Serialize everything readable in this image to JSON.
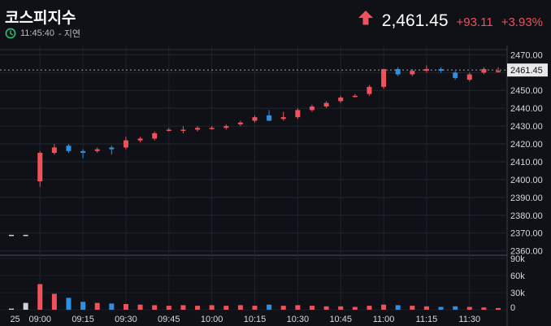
{
  "header": {
    "title": "코스피지수",
    "time": "11:45:40",
    "delay_label": "- 지연",
    "price": "2,461.45",
    "change": "+93.11",
    "change_pct": "+3.93%",
    "up_color": "#f0515c",
    "down_color": "#2f8fe0"
  },
  "chart_data": {
    "type": "candlestick",
    "price_axis": {
      "ticks": [
        "2470.00",
        "2460.00",
        "2450.00",
        "2440.00",
        "2430.00",
        "2420.00",
        "2410.00",
        "2400.00",
        "2390.00",
        "2380.00",
        "2370.00",
        "2360.00"
      ],
      "range": [
        2358,
        2472
      ],
      "last_price_label": "2461.45",
      "last_price": 2461.45
    },
    "volume_axis": {
      "ticks": [
        "90k",
        "60k",
        "30k",
        "0"
      ],
      "range": [
        0,
        90000
      ]
    },
    "time_labels": [
      "25",
      "09:00",
      "09:15",
      "09:30",
      "09:45",
      "10:00",
      "10:15",
      "10:30",
      "10:45",
      "11:00",
      "11:15",
      "11:30"
    ],
    "candles": [
      {
        "t": "08:50",
        "o": 2369,
        "h": 2369,
        "l": 2369,
        "c": 2369,
        "v": 2000
      },
      {
        "t": "08:55",
        "o": 2369,
        "h": 2369,
        "l": 2369,
        "c": 2369,
        "v": 12000
      },
      {
        "t": "09:00",
        "o": 2399,
        "h": 2416,
        "l": 2396,
        "c": 2415,
        "v": 45000
      },
      {
        "t": "09:05",
        "o": 2415,
        "h": 2420,
        "l": 2414,
        "c": 2418,
        "v": 28000
      },
      {
        "t": "09:10",
        "o": 2419,
        "h": 2420,
        "l": 2415,
        "c": 2416,
        "v": 21000
      },
      {
        "t": "09:15",
        "o": 2416,
        "h": 2417,
        "l": 2412,
        "c": 2415,
        "v": 14000
      },
      {
        "t": "09:20",
        "o": 2416,
        "h": 2418,
        "l": 2415,
        "c": 2417,
        "v": 12000
      },
      {
        "t": "09:25",
        "o": 2418,
        "h": 2419,
        "l": 2414,
        "c": 2417,
        "v": 11000
      },
      {
        "t": "09:30",
        "o": 2418,
        "h": 2424,
        "l": 2417,
        "c": 2422,
        "v": 10000
      },
      {
        "t": "09:35",
        "o": 2422,
        "h": 2424,
        "l": 2421,
        "c": 2423,
        "v": 9000
      },
      {
        "t": "09:40",
        "o": 2423,
        "h": 2427,
        "l": 2422,
        "c": 2426,
        "v": 8000
      },
      {
        "t": "09:45",
        "o": 2428,
        "h": 2429,
        "l": 2427,
        "c": 2428,
        "v": 7000
      },
      {
        "t": "09:50",
        "o": 2428,
        "h": 2430,
        "l": 2426,
        "c": 2428,
        "v": 8000
      },
      {
        "t": "09:55",
        "o": 2428,
        "h": 2430,
        "l": 2427,
        "c": 2429,
        "v": 7000
      },
      {
        "t": "10:00",
        "o": 2429,
        "h": 2430,
        "l": 2428,
        "c": 2429,
        "v": 8000
      },
      {
        "t": "10:05",
        "o": 2429,
        "h": 2431,
        "l": 2428,
        "c": 2430,
        "v": 7000
      },
      {
        "t": "10:10",
        "o": 2431,
        "h": 2433,
        "l": 2430,
        "c": 2432,
        "v": 8000
      },
      {
        "t": "10:15",
        "o": 2433,
        "h": 2436,
        "l": 2432,
        "c": 2435,
        "v": 7000
      },
      {
        "t": "10:20",
        "o": 2436,
        "h": 2439,
        "l": 2433,
        "c": 2433,
        "v": 9000
      },
      {
        "t": "10:25",
        "o": 2434,
        "h": 2438,
        "l": 2433,
        "c": 2435,
        "v": 7000
      },
      {
        "t": "10:30",
        "o": 2435,
        "h": 2440,
        "l": 2434,
        "c": 2439,
        "v": 8000
      },
      {
        "t": "10:35",
        "o": 2439,
        "h": 2442,
        "l": 2438,
        "c": 2441,
        "v": 7000
      },
      {
        "t": "10:40",
        "o": 2441,
        "h": 2444,
        "l": 2440,
        "c": 2443,
        "v": 6000
      },
      {
        "t": "10:45",
        "o": 2444,
        "h": 2447,
        "l": 2443,
        "c": 2446,
        "v": 6000
      },
      {
        "t": "10:50",
        "o": 2447,
        "h": 2448,
        "l": 2446,
        "c": 2447,
        "v": 5000
      },
      {
        "t": "10:55",
        "o": 2448,
        "h": 2453,
        "l": 2447,
        "c": 2452,
        "v": 7000
      },
      {
        "t": "11:00",
        "o": 2452,
        "h": 2462,
        "l": 2451,
        "c": 2462,
        "v": 9000
      },
      {
        "t": "11:05",
        "o": 2462,
        "h": 2463,
        "l": 2458,
        "c": 2459,
        "v": 8000
      },
      {
        "t": "11:10",
        "o": 2459,
        "h": 2462,
        "l": 2458,
        "c": 2461,
        "v": 7000
      },
      {
        "t": "11:15",
        "o": 2461,
        "h": 2464,
        "l": 2460,
        "c": 2462,
        "v": 6000
      },
      {
        "t": "11:20",
        "o": 2462,
        "h": 2463,
        "l": 2460,
        "c": 2461,
        "v": 5000
      },
      {
        "t": "11:25",
        "o": 2460,
        "h": 2461,
        "l": 2456,
        "c": 2457,
        "v": 6000
      },
      {
        "t": "11:30",
        "o": 2456,
        "h": 2460,
        "l": 2455,
        "c": 2459,
        "v": 5000
      },
      {
        "t": "11:35",
        "o": 2460,
        "h": 2463,
        "l": 2459,
        "c": 2462,
        "v": 4000
      },
      {
        "t": "11:40",
        "o": 2461,
        "h": 2463,
        "l": 2460,
        "c": 2461,
        "v": 3000
      }
    ]
  }
}
